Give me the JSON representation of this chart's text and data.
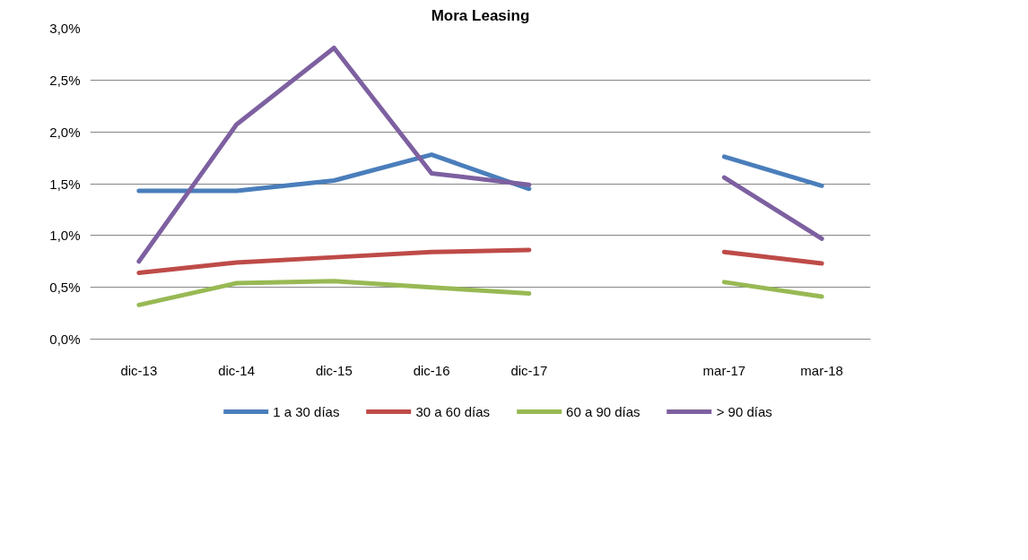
{
  "chart_data": {
    "type": "line",
    "title": "Mora Leasing",
    "categories": [
      "dic-13",
      "dic-14",
      "dic-15",
      "dic-16",
      "dic-17",
      null,
      "mar-17",
      "mar-18"
    ],
    "series": [
      {
        "name": "1 a 30 días",
        "color": "#4a7ebb",
        "values": [
          1.43,
          1.43,
          1.53,
          1.78,
          1.45,
          null,
          1.76,
          1.48
        ]
      },
      {
        "name": "30 a 60 días",
        "color": "#be4b48",
        "values": [
          0.64,
          0.74,
          0.79,
          0.84,
          0.86,
          null,
          0.84,
          0.73
        ]
      },
      {
        "name": "60 a 90 días",
        "color": "#98b954",
        "values": [
          0.33,
          0.54,
          0.56,
          0.5,
          0.44,
          null,
          0.55,
          0.41
        ]
      },
      {
        "name": "> 90 días",
        "color": "#7d60a0",
        "values": [
          0.75,
          2.07,
          2.81,
          1.6,
          1.49,
          null,
          1.56,
          0.97
        ]
      }
    ],
    "ylim": [
      0,
      3.0
    ],
    "yticks": [
      {
        "value": 0,
        "label": "0,0%"
      },
      {
        "value": 0.5,
        "label": "0,5%"
      },
      {
        "value": 1.0,
        "label": "1,0%"
      },
      {
        "value": 1.5,
        "label": "1,5%"
      },
      {
        "value": 2.0,
        "label": "2,0%"
      },
      {
        "value": 2.5,
        "label": "2,5%"
      },
      {
        "value": 3.0,
        "label": "3,0%"
      }
    ],
    "grid": "y",
    "legend": "bottom",
    "marker": "none",
    "line_style": "solid"
  }
}
